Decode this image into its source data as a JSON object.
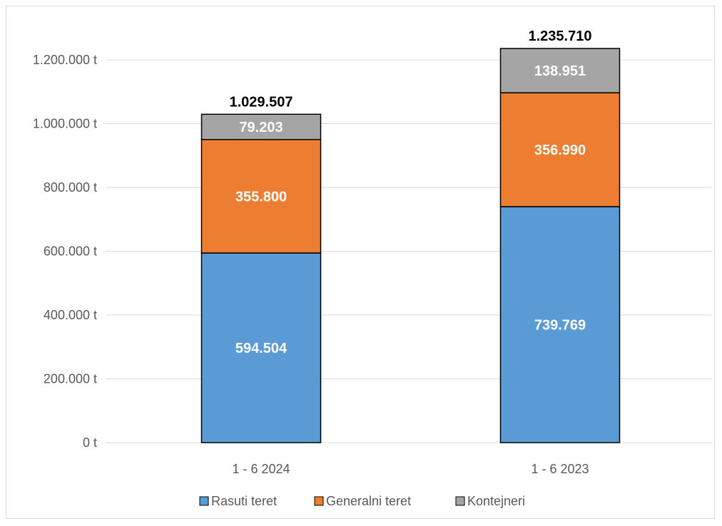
{
  "chart_data": {
    "type": "bar",
    "stacked": true,
    "title": "",
    "xlabel": "",
    "ylabel": "",
    "ylim": [
      0,
      1200000
    ],
    "y_ticks": [
      "0 t",
      "200.000 t",
      "400.000 t",
      "600.000 t",
      "800.000 t",
      "1.000.000 t",
      "1.200.000 t"
    ],
    "y_tick_values": [
      0,
      200000,
      400000,
      600000,
      800000,
      1000000,
      1200000
    ],
    "grid": true,
    "legend_position": "bottom",
    "categories": [
      "1 - 6 2024",
      "1 - 6 2023"
    ],
    "series": [
      {
        "name": "Rasuti teret",
        "color": "#5b9bd5",
        "values": [
          594504,
          739769
        ],
        "labels": [
          "594.504",
          "739.769"
        ]
      },
      {
        "name": "Generalni teret",
        "color": "#ed7d31",
        "values": [
          355800,
          356990
        ],
        "labels": [
          "355.800",
          "356.990"
        ]
      },
      {
        "name": "Kontejneri",
        "color": "#a5a5a5",
        "values": [
          79203,
          138951
        ],
        "labels": [
          "79.203",
          "138.951"
        ]
      }
    ],
    "totals": [
      1029507,
      1235710
    ],
    "total_labels": [
      "1.029.507",
      "1.235.710"
    ]
  }
}
